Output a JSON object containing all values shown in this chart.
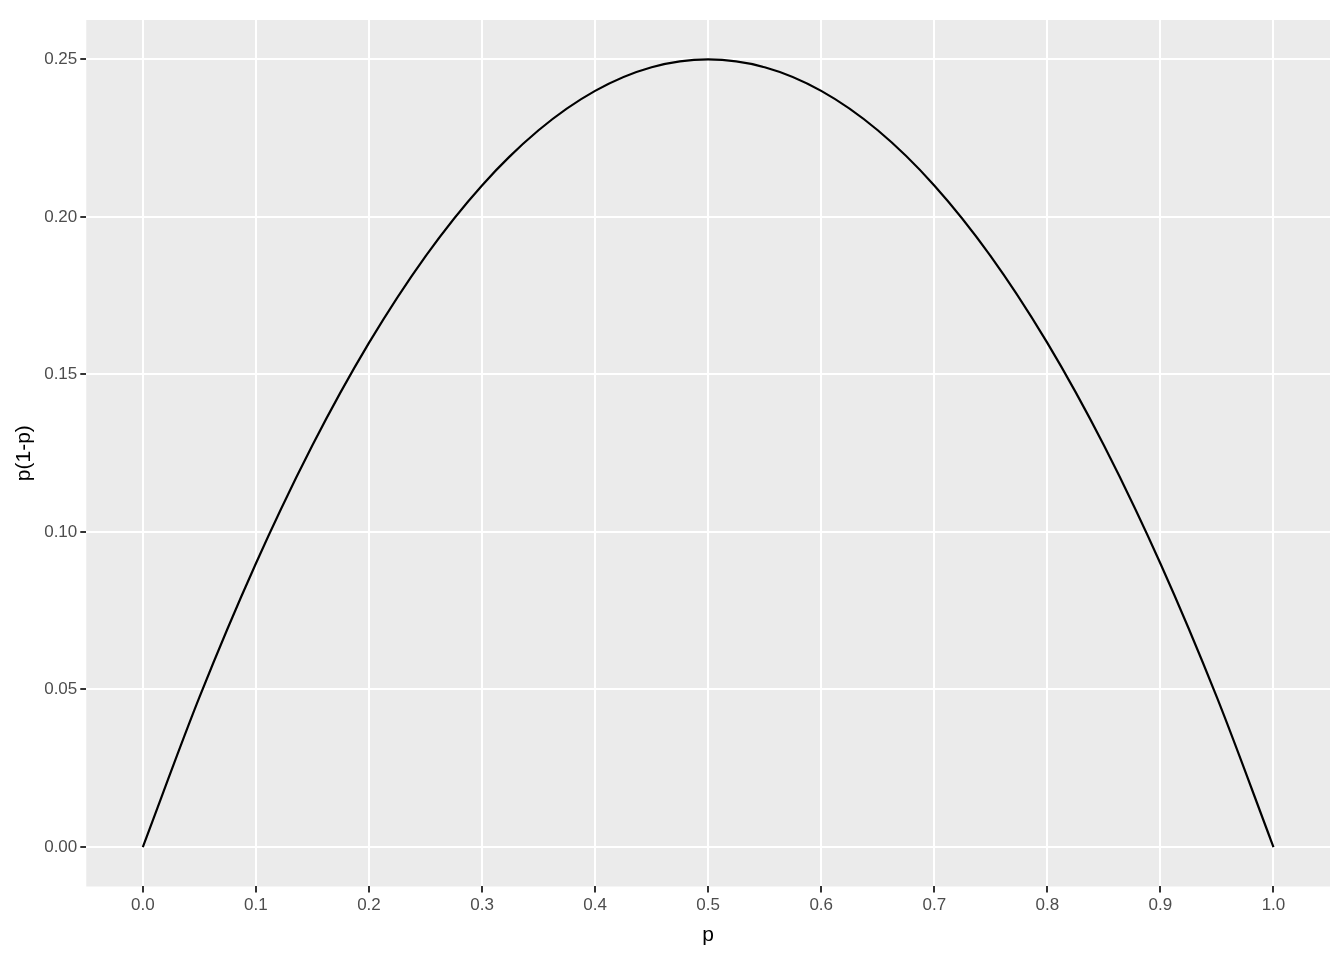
{
  "chart_data": {
    "type": "line",
    "xlabel": "p",
    "ylabel": "p(1-p)",
    "x": [
      0,
      0.05,
      0.1,
      0.15,
      0.2,
      0.25,
      0.3,
      0.35,
      0.4,
      0.45,
      0.5,
      0.55,
      0.6,
      0.65,
      0.7,
      0.75,
      0.8,
      0.85,
      0.9,
      0.95,
      1
    ],
    "series": [
      {
        "color": "#000000",
        "values": [
          0,
          0.0475,
          0.09,
          0.1275,
          0.16,
          0.1875,
          0.21,
          0.2275,
          0.24,
          0.2475,
          0.25,
          0.2475,
          0.24,
          0.2275,
          0.21,
          0.1875,
          0.16,
          0.1275,
          0.09,
          0.0475,
          0
        ]
      }
    ],
    "xlim": [
      -0.05,
      1.05
    ],
    "xticks": [
      {
        "value": 0,
        "label": "0.0"
      },
      0.1,
      0.2,
      0.3,
      0.4,
      0.5,
      0.6,
      0.7,
      0.8,
      0.9,
      {
        "value": 1,
        "label": "1.0"
      }
    ],
    "ylim": [
      -0.0125,
      0.2625
    ],
    "yticks": [
      {
        "value": 0,
        "label": "0.00"
      },
      0.05,
      {
        "value": 0.1,
        "label": "0.10"
      },
      0.15,
      {
        "value": 0.2,
        "label": "0.20"
      },
      0.25
    ],
    "grid": true,
    "legend": false,
    "marker": "none",
    "line_style": "solid"
  }
}
